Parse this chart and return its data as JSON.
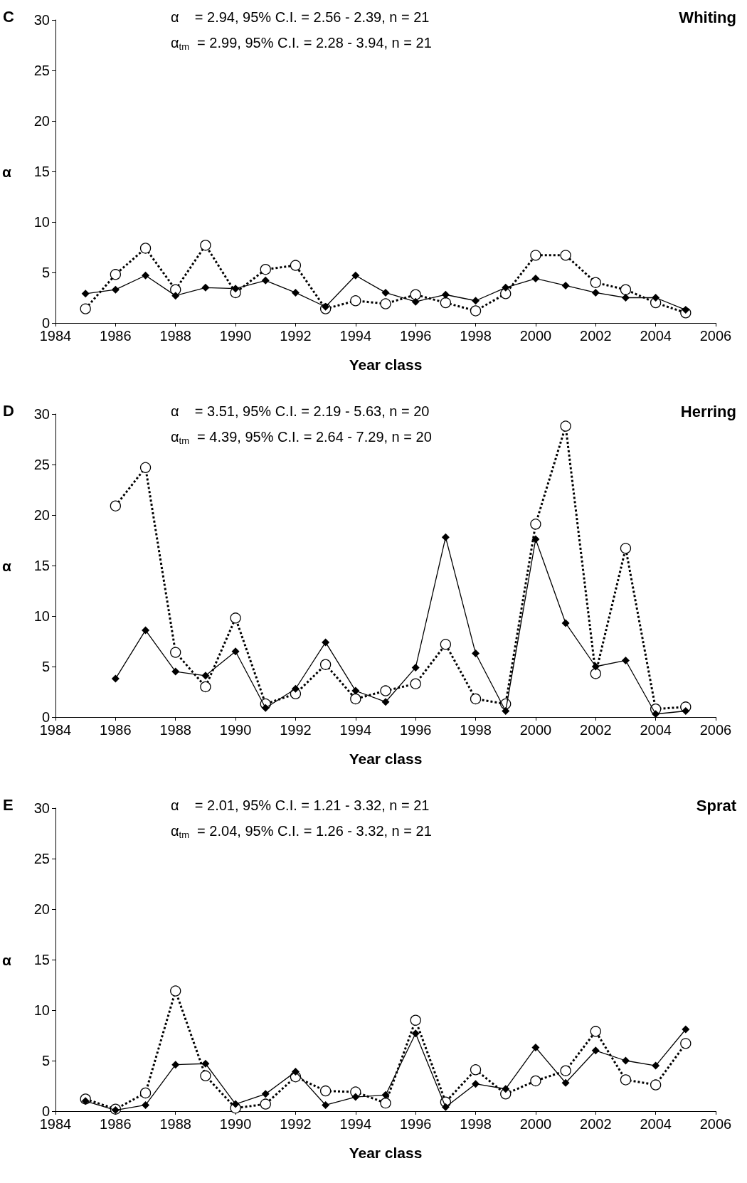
{
  "chart_data": [
    {
      "type": "line",
      "title": "Whiting",
      "xlabel": "Year class",
      "ylabel": "α",
      "annotations": [
        "C",
        "α    = 2.94, 95% C.I. = 2.56 - 2.39, n = 21",
        "α$_{tm}$  = 2.99, 95% C.I. = 2.28 - 3.94, n = 21"
      ],
      "x": [
        1985,
        1986,
        1987,
        1988,
        1989,
        1990,
        1991,
        1992,
        1993,
        1994,
        1995,
        1996,
        1997,
        1998,
        1999,
        2000,
        2001,
        2002,
        2003,
        2004,
        2005
      ],
      "series": [
        {
          "color": "#000000",
          "marker": "diamond",
          "line_style": "solid",
          "values": [
            2.9,
            3.3,
            4.7,
            2.7,
            3.5,
            3.4,
            4.2,
            3.0,
            1.6,
            4.7,
            3.0,
            2.1,
            2.8,
            2.2,
            3.5,
            4.4,
            3.7,
            3.0,
            2.5,
            2.5,
            1.3
          ]
        },
        {
          "color": "#000000",
          "marker": "circle",
          "line_style": "dotted",
          "values": [
            1.4,
            4.8,
            7.4,
            3.3,
            7.7,
            3.0,
            5.3,
            5.7,
            1.4,
            2.2,
            1.9,
            2.8,
            2.0,
            1.2,
            2.9,
            6.7,
            6.7,
            4.0,
            3.3,
            2.0,
            1.0
          ]
        }
      ],
      "xlim": [
        1984,
        2006
      ],
      "xticks": [
        1984,
        1986,
        1988,
        1990,
        1992,
        1994,
        1996,
        1998,
        2000,
        2002,
        2004,
        2006
      ],
      "ylim": [
        0,
        30
      ],
      "yticks": [
        0,
        5,
        10,
        15,
        20,
        25,
        30
      ]
    },
    {
      "type": "line",
      "title": "Herring",
      "xlabel": "Year class",
      "ylabel": "α",
      "annotations": [
        "D",
        "α    = 3.51, 95% C.I. = 2.19 - 5.63, n = 20",
        "α$_{tm}$  = 4.39, 95% C.I. = 2.64 - 7.29, n = 20"
      ],
      "x": [
        1986,
        1987,
        1988,
        1989,
        1990,
        1991,
        1992,
        1993,
        1994,
        1995,
        1996,
        1997,
        1998,
        1999,
        2000,
        2001,
        2002,
        2003,
        2004,
        2005
      ],
      "series": [
        {
          "color": "#000000",
          "marker": "diamond",
          "line_style": "solid",
          "values": [
            3.8,
            8.6,
            4.5,
            4.1,
            6.5,
            0.9,
            2.8,
            7.4,
            2.6,
            1.5,
            4.9,
            17.8,
            6.3,
            0.6,
            17.6,
            9.3,
            5.0,
            5.6,
            0.3,
            0.6
          ]
        },
        {
          "color": "#000000",
          "marker": "circle",
          "line_style": "dotted",
          "values": [
            20.9,
            24.7,
            6.4,
            3.0,
            9.8,
            1.3,
            2.3,
            5.2,
            1.8,
            2.6,
            3.3,
            7.2,
            1.8,
            1.3,
            19.1,
            28.8,
            4.3,
            16.7,
            0.8,
            1.0
          ]
        }
      ],
      "xlim": [
        1984,
        2006
      ],
      "xticks": [
        1984,
        1986,
        1988,
        1990,
        1992,
        1994,
        1996,
        1998,
        2000,
        2002,
        2004,
        2006
      ],
      "ylim": [
        0,
        30
      ],
      "yticks": [
        0,
        5,
        10,
        15,
        20,
        25,
        30
      ]
    },
    {
      "type": "line",
      "title": "Sprat",
      "xlabel": "Year class",
      "ylabel": "α",
      "annotations": [
        "E",
        "α    = 2.01, 95% C.I. = 1.21 - 3.32, n = 21",
        "α$_{tm}$  = 2.04, 95% C.I. = 1.26 - 3.32, n = 21"
      ],
      "x": [
        1985,
        1986,
        1987,
        1988,
        1989,
        1990,
        1991,
        1992,
        1993,
        1994,
        1995,
        1996,
        1997,
        1998,
        1999,
        2000,
        2001,
        2002,
        2003,
        2004,
        2005
      ],
      "series": [
        {
          "color": "#000000",
          "marker": "diamond",
          "line_style": "solid",
          "values": [
            1.0,
            0.1,
            0.6,
            4.6,
            4.7,
            0.7,
            1.7,
            3.9,
            0.6,
            1.4,
            1.6,
            7.7,
            0.4,
            2.7,
            2.2,
            6.3,
            2.8,
            6.0,
            5.0,
            4.5,
            8.1
          ]
        },
        {
          "color": "#000000",
          "marker": "circle",
          "line_style": "dotted",
          "values": [
            1.2,
            0.2,
            1.8,
            11.9,
            3.5,
            0.3,
            0.7,
            3.4,
            2.0,
            1.9,
            0.8,
            9.0,
            0.9,
            4.1,
            1.7,
            3.0,
            4.0,
            7.9,
            3.1,
            2.6,
            6.7
          ]
        }
      ],
      "xlim": [
        1984,
        2006
      ],
      "xticks": [
        1984,
        1986,
        1988,
        1990,
        1992,
        1994,
        1996,
        1998,
        2000,
        2002,
        2004,
        2006
      ],
      "ylim": [
        0,
        30
      ],
      "yticks": [
        0,
        5,
        10,
        15,
        20,
        25,
        30
      ]
    }
  ]
}
